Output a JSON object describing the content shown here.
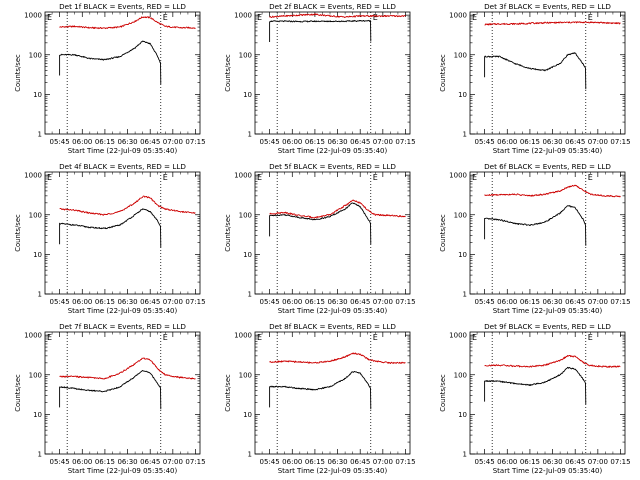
{
  "chart_data": {
    "type": "line",
    "shared": {
      "xlabel": "Start Time (22-Jul-09 05:35:40)",
      "ylabel": "Counts/sec",
      "x_ticks": [
        "05:45",
        "06:00",
        "06:15",
        "06:30",
        "06:45",
        "07:00",
        "07:15"
      ],
      "x_tick_minutes": [
        0,
        15,
        30,
        45,
        60,
        75,
        90
      ],
      "xlim_minutes": [
        -9.7,
        93
      ],
      "y_ticks": [
        "1",
        "10",
        "100",
        "1000"
      ],
      "y_tick_values": [
        1,
        10,
        100,
        1000
      ],
      "ylim": [
        1,
        1200
      ],
      "yscale": "log",
      "vlines_minutes": [
        5,
        67
      ],
      "corner_marks": [
        "E",
        "E"
      ],
      "series_colors": {
        "events": "#000000",
        "lld": "#cc0000"
      }
    },
    "panels": [
      {
        "title": "Det 1f BLACK = Events, RED = LLD",
        "events": {
          "x": [
            0,
            10,
            20,
            30,
            40,
            50,
            55,
            60,
            65,
            67
          ],
          "y": [
            100,
            100,
            80,
            75,
            90,
            150,
            220,
            190,
            90,
            60
          ]
        },
        "lld": {
          "x": [
            0,
            10,
            20,
            30,
            40,
            50,
            55,
            60,
            65,
            70,
            80,
            90
          ],
          "y": [
            500,
            520,
            480,
            470,
            500,
            700,
            900,
            870,
            650,
            520,
            480,
            480
          ]
        }
      },
      {
        "title": "Det 2f BLACK = Events, RED = LLD",
        "events": {
          "x": [
            0,
            10,
            20,
            30,
            40,
            50,
            60,
            67
          ],
          "y": [
            700,
            700,
            690,
            700,
            700,
            700,
            720,
            720
          ]
        },
        "lld": {
          "x": [
            0,
            10,
            20,
            30,
            40,
            50,
            60,
            70,
            80,
            90
          ],
          "y": [
            900,
            950,
            1000,
            1050,
            950,
            900,
            950,
            950,
            950,
            950
          ]
        }
      },
      {
        "title": "Det 3f BLACK = Events, RED = LLD",
        "events": {
          "x": [
            0,
            10,
            20,
            30,
            40,
            50,
            55,
            60,
            65,
            67
          ],
          "y": [
            90,
            90,
            60,
            45,
            40,
            60,
            100,
            110,
            60,
            45
          ]
        },
        "lld": {
          "x": [
            0,
            10,
            20,
            30,
            40,
            50,
            60,
            70,
            80,
            90
          ],
          "y": [
            580,
            600,
            600,
            620,
            640,
            650,
            660,
            660,
            640,
            620
          ]
        }
      },
      {
        "title": "Det 4f BLACK = Events, RED = LLD",
        "events": {
          "x": [
            0,
            10,
            20,
            30,
            40,
            50,
            55,
            60,
            65,
            67
          ],
          "y": [
            60,
            55,
            48,
            45,
            55,
            100,
            140,
            120,
            70,
            50
          ]
        },
        "lld": {
          "x": [
            0,
            10,
            20,
            30,
            40,
            50,
            55,
            60,
            65,
            70,
            80,
            90
          ],
          "y": [
            140,
            130,
            110,
            100,
            120,
            200,
            290,
            270,
            170,
            140,
            120,
            110
          ]
        }
      },
      {
        "title": "Det 5f BLACK = Events, RED = LLD",
        "events": {
          "x": [
            0,
            10,
            20,
            30,
            40,
            50,
            55,
            60,
            65,
            67
          ],
          "y": [
            95,
            100,
            85,
            75,
            90,
            140,
            200,
            160,
            80,
            60
          ]
        },
        "lld": {
          "x": [
            0,
            10,
            20,
            30,
            40,
            50,
            55,
            60,
            65,
            70,
            80,
            90
          ],
          "y": [
            105,
            115,
            95,
            85,
            100,
            170,
            230,
            200,
            130,
            100,
            95,
            90
          ]
        }
      },
      {
        "title": "Det 6f BLACK = Events, RED = LLD",
        "events": {
          "x": [
            0,
            10,
            20,
            30,
            40,
            50,
            55,
            60,
            65,
            67
          ],
          "y": [
            80,
            75,
            60,
            55,
            65,
            110,
            170,
            150,
            80,
            55
          ]
        },
        "lld": {
          "x": [
            0,
            10,
            20,
            30,
            40,
            50,
            55,
            60,
            65,
            70,
            80,
            90
          ],
          "y": [
            310,
            320,
            330,
            300,
            330,
            400,
            500,
            560,
            420,
            330,
            300,
            290
          ]
        }
      },
      {
        "title": "Det 7f BLACK = Events, RED = LLD",
        "events": {
          "x": [
            0,
            10,
            20,
            30,
            40,
            50,
            55,
            60,
            65,
            67
          ],
          "y": [
            50,
            45,
            40,
            38,
            50,
            90,
            130,
            110,
            60,
            45
          ]
        },
        "lld": {
          "x": [
            0,
            10,
            20,
            30,
            40,
            50,
            55,
            60,
            65,
            70,
            80,
            90
          ],
          "y": [
            90,
            90,
            85,
            80,
            110,
            190,
            260,
            240,
            140,
            100,
            85,
            80
          ]
        }
      },
      {
        "title": "Det 8f BLACK = Events, RED = LLD",
        "events": {
          "x": [
            0,
            10,
            20,
            30,
            40,
            50,
            55,
            60,
            65,
            67
          ],
          "y": [
            50,
            50,
            45,
            42,
            50,
            80,
            120,
            110,
            60,
            45
          ]
        },
        "lld": {
          "x": [
            0,
            10,
            20,
            30,
            40,
            50,
            55,
            60,
            65,
            70,
            80,
            90
          ],
          "y": [
            210,
            220,
            210,
            200,
            220,
            280,
            350,
            330,
            250,
            220,
            200,
            200
          ]
        }
      },
      {
        "title": "Det 9f BLACK = Events, RED = LLD",
        "events": {
          "x": [
            0,
            10,
            20,
            30,
            40,
            50,
            55,
            60,
            65,
            67
          ],
          "y": [
            70,
            68,
            60,
            55,
            65,
            100,
            150,
            140,
            80,
            60
          ]
        },
        "lld": {
          "x": [
            0,
            10,
            20,
            30,
            40,
            50,
            55,
            60,
            65,
            70,
            80,
            90
          ],
          "y": [
            170,
            175,
            165,
            160,
            175,
            230,
            300,
            290,
            210,
            170,
            160,
            160
          ]
        }
      }
    ]
  }
}
